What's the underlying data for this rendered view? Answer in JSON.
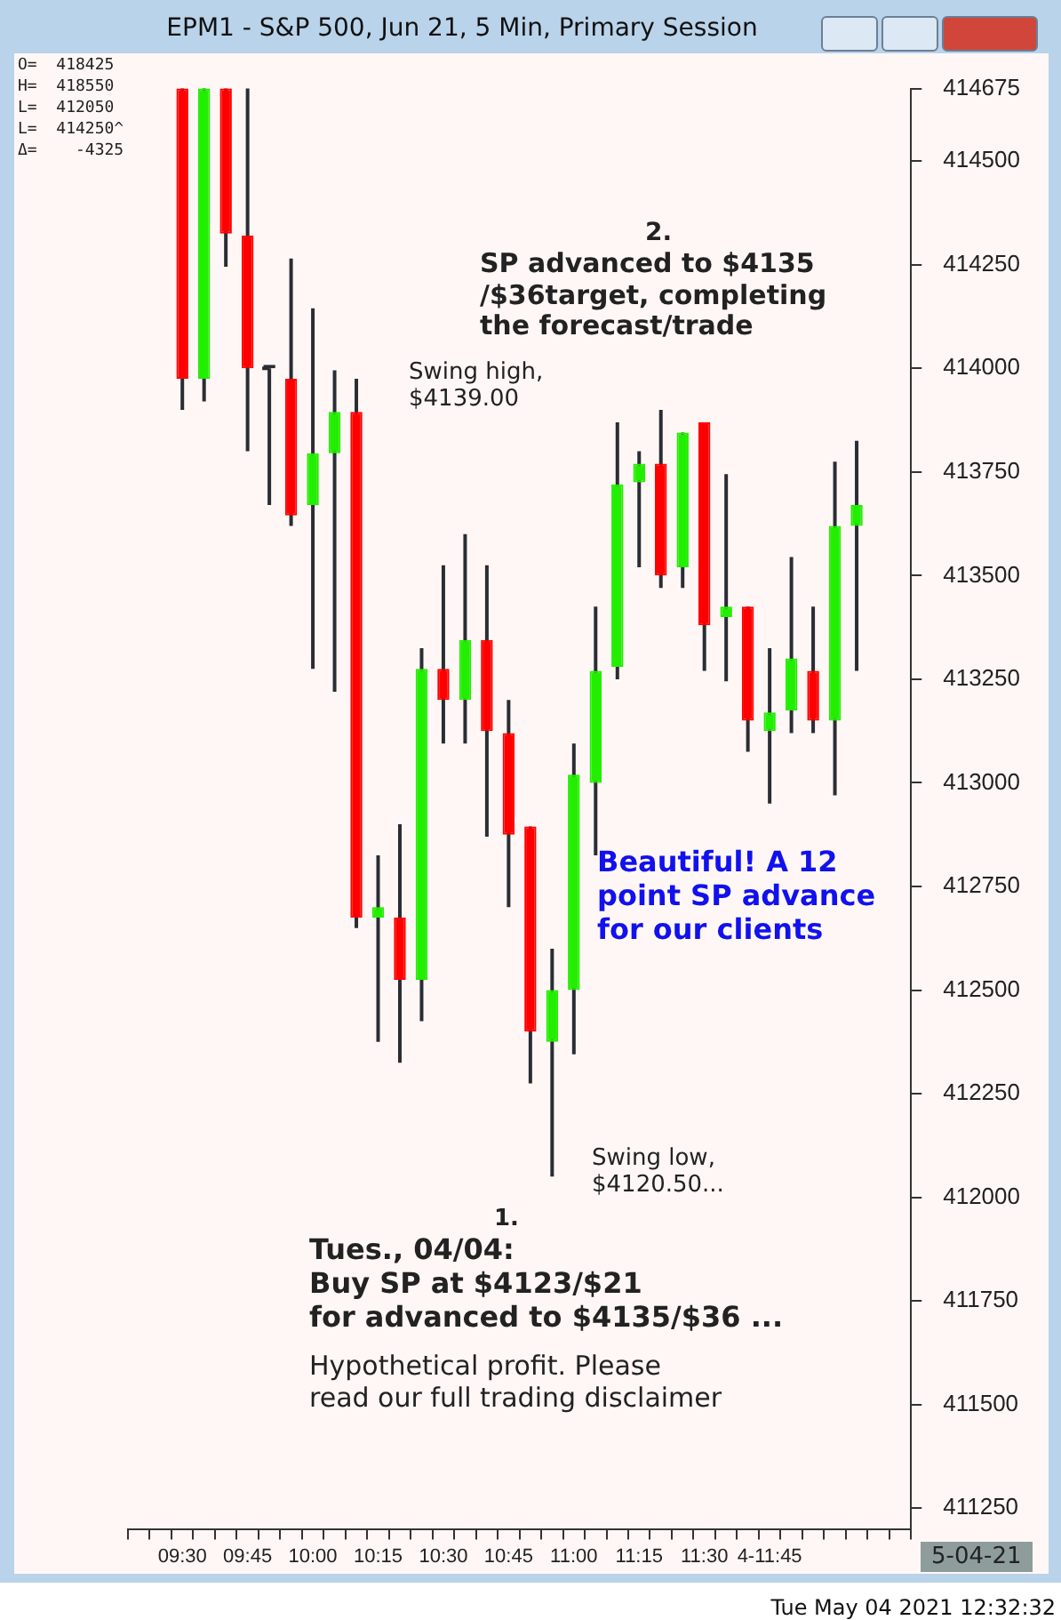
{
  "chart_data": {
    "type": "candlestick",
    "title": "EPM1 - S&P 500, Jun 21, 5 Min, Primary Session",
    "categories": [
      null,
      null,
      "09:30",
      null,
      null,
      "09:45",
      null,
      null,
      "10:00",
      null,
      null,
      "10:15",
      null,
      null,
      "10:30",
      null,
      null,
      "10:45",
      null,
      null,
      "11:00",
      null,
      null,
      "11:15",
      null,
      null,
      "11:30",
      null,
      null,
      "4-11:45",
      null,
      null,
      null,
      null,
      null,
      null
    ],
    "ohlc": [
      null,
      null,
      [
        414675,
        414675,
        413900,
        413975
      ],
      [
        413975,
        414675,
        413920,
        414675
      ],
      [
        414675,
        414675,
        414245,
        414325
      ],
      [
        414320,
        414675,
        413800,
        414000
      ],
      [
        414000,
        414000,
        413670,
        414000
      ],
      [
        413975,
        414265,
        413620,
        413645
      ],
      [
        413670,
        414145,
        413275,
        413795
      ],
      [
        413795,
        413995,
        413220,
        413895
      ],
      [
        413895,
        413975,
        412650,
        412675
      ],
      [
        412675,
        412825,
        412375,
        412700
      ],
      [
        412675,
        412900,
        412325,
        412525
      ],
      [
        412525,
        413325,
        412425,
        413275
      ],
      [
        413275,
        413525,
        413095,
        413200
      ],
      [
        413200,
        413600,
        413095,
        413345
      ],
      [
        413345,
        413525,
        412870,
        413125
      ],
      [
        413120,
        413200,
        412700,
        412875
      ],
      [
        412895,
        412895,
        412275,
        412400
      ],
      [
        412375,
        412600,
        412050,
        412500
      ],
      [
        412500,
        413095,
        412345,
        413020
      ],
      [
        413000,
        413425,
        412825,
        413270
      ],
      [
        413280,
        413870,
        413250,
        413720
      ],
      [
        413725,
        413800,
        413520,
        413770
      ],
      [
        413770,
        413900,
        413470,
        413500
      ],
      [
        413520,
        413845,
        413470,
        413845
      ],
      [
        413870,
        413870,
        413270,
        413380
      ],
      [
        413400,
        413745,
        413245,
        413425
      ],
      [
        413425,
        413425,
        413075,
        413150
      ],
      [
        413125,
        413325,
        412950,
        413170
      ],
      [
        413175,
        413545,
        413120,
        413300
      ],
      [
        413270,
        413425,
        413120,
        413150
      ],
      [
        413150,
        413775,
        412970,
        413620
      ],
      [
        413620,
        413825,
        413270,
        413670
      ],
      null,
      null
    ],
    "colors": [
      null,
      null,
      "#ff0000",
      "#22ee00",
      "#ff0000",
      "#ff0000",
      "#2a2d33",
      "#ff0000",
      "#22ee00",
      "#22ee00",
      "#ff0000",
      "#22ee00",
      "#ff0000",
      "#22ee00",
      "#ff0000",
      "#22ee00",
      "#ff0000",
      "#ff0000",
      "#ff0000",
      "#22ee00",
      "#22ee00",
      "#22ee00",
      "#22ee00",
      "#22ee00",
      "#ff0000",
      "#22ee00",
      "#ff0000",
      "#22ee00",
      "#ff0000",
      "#22ee00",
      "#22ee00",
      "#ff0000",
      "#22ee00",
      "#22ee00",
      null,
      null
    ],
    "ylim": [
      411200,
      414675
    ],
    "yticks": [
      411250,
      411500,
      411750,
      412000,
      412250,
      412500,
      412750,
      413000,
      413250,
      413500,
      413750,
      414000,
      414250,
      414500,
      414675
    ],
    "annotations": [
      "O=  418425",
      "H=  418550",
      "L=  412050",
      "L=  414250^",
      "Δ=    -4325",
      "2.",
      "SP advanced to $4135\n/$36target, completing\nthe forecast/trade",
      "Swing high,\n$4139.00",
      "Beautiful! A 12\npoint SP advance\nfor our clients",
      "Swing low,\n$4120.50...",
      "1.",
      "Tues., 04/04:\nBuy SP at $4123/$21\nfor advanced to $4135/$36 ...",
      "Hypothetical profit. Please\nread our full trading disclaimer",
      "5-04-21",
      "Tue May 04 2021 12:32:32"
    ]
  }
}
